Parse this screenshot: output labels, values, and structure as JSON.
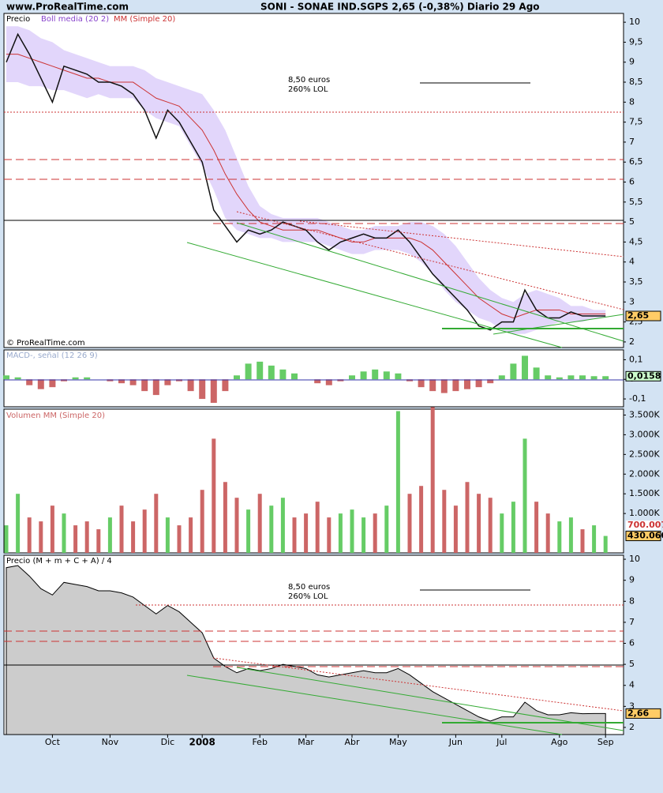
{
  "header": {
    "site": "www.ProRealTime.com",
    "title": "SONI - SONAE IND.SGPS   2,65 (-0,38%)   Diario  29 Ago"
  },
  "chart_data": [
    {
      "type": "line",
      "title": "Precio",
      "copyright": "© ProRealTime.com",
      "annotations": [
        "8,50 euros",
        "260% LOL"
      ],
      "ylim": [
        1.86,
        10.22
      ],
      "yticks": [
        10,
        {
          "value": 9.5,
          "label": "9,5"
        },
        9,
        {
          "value": 8.5,
          "label": "8,5"
        },
        8,
        {
          "value": 7.5,
          "label": "7,5"
        },
        7,
        {
          "value": 6.5,
          "label": "6,5"
        },
        6,
        {
          "value": 5.5,
          "label": "5,5"
        },
        5,
        {
          "value": 4.5,
          "label": "4,5"
        },
        4,
        {
          "value": 3.5,
          "label": "3,5"
        },
        3,
        {
          "value": 2.5,
          "label": "2,5"
        },
        2
      ],
      "last_label": {
        "value": 2.65,
        "label": "2,65"
      },
      "series": [
        {
          "name": "Precio",
          "color": "#111111",
          "values": [
            9.0,
            9.7,
            9.2,
            8.6,
            8.0,
            8.9,
            8.8,
            8.7,
            8.5,
            8.5,
            8.4,
            8.2,
            7.8,
            7.1,
            7.8,
            7.5,
            7.0,
            6.5,
            5.3,
            4.9,
            4.5,
            4.8,
            4.7,
            4.8,
            5.0,
            4.9,
            4.8,
            4.5,
            4.3,
            4.5,
            4.6,
            4.7,
            4.6,
            4.6,
            4.8,
            4.5,
            4.1,
            3.7,
            3.4,
            3.1,
            2.8,
            2.4,
            2.3,
            2.5,
            2.5,
            3.3,
            2.8,
            2.6,
            2.6,
            2.75,
            2.65,
            2.65,
            2.65
          ]
        },
        {
          "name": "Boll media (20 2)",
          "color": "#e2d6fb",
          "upper": [
            9.9,
            9.9,
            9.8,
            9.6,
            9.5,
            9.3,
            9.2,
            9.1,
            9.0,
            8.9,
            8.9,
            8.9,
            8.8,
            8.6,
            8.5,
            8.4,
            8.3,
            8.2,
            7.8,
            7.3,
            6.6,
            5.9,
            5.4,
            5.2,
            5.1,
            5.1,
            5.1,
            5.1,
            5.0,
            4.9,
            4.8,
            4.8,
            4.9,
            4.9,
            4.9,
            5.0,
            5.0,
            4.9,
            4.7,
            4.4,
            4.0,
            3.6,
            3.3,
            3.1,
            3.0,
            3.2,
            3.3,
            3.2,
            3.1,
            2.9,
            2.9,
            2.8,
            2.8
          ],
          "lower": [
            8.5,
            8.5,
            8.4,
            8.4,
            8.3,
            8.3,
            8.2,
            8.1,
            8.2,
            8.1,
            8.1,
            8.1,
            7.8,
            7.6,
            7.5,
            7.4,
            6.9,
            6.4,
            5.8,
            5.1,
            4.8,
            4.7,
            4.6,
            4.6,
            4.5,
            4.5,
            4.5,
            4.5,
            4.4,
            4.3,
            4.2,
            4.2,
            4.3,
            4.3,
            4.3,
            4.2,
            4.0,
            3.7,
            3.3,
            3.0,
            2.8,
            2.6,
            2.5,
            2.3,
            2.2,
            2.2,
            2.3,
            2.4,
            2.5,
            2.5,
            2.5,
            2.6,
            2.6
          ]
        },
        {
          "name": "MM (Simple 20)",
          "color": "#cc3333",
          "values": [
            9.2,
            9.2,
            9.1,
            9.0,
            8.9,
            8.8,
            8.7,
            8.6,
            8.6,
            8.5,
            8.5,
            8.5,
            8.3,
            8.1,
            8.0,
            7.9,
            7.6,
            7.3,
            6.8,
            6.2,
            5.7,
            5.3,
            5.0,
            4.9,
            4.8,
            4.8,
            4.8,
            4.8,
            4.7,
            4.6,
            4.5,
            4.5,
            4.6,
            4.6,
            4.6,
            4.6,
            4.5,
            4.3,
            4.0,
            3.7,
            3.4,
            3.1,
            2.9,
            2.7,
            2.6,
            2.7,
            2.8,
            2.8,
            2.8,
            2.7,
            2.7,
            2.7,
            2.7
          ]
        }
      ]
    },
    {
      "type": "bar",
      "title": "MACD-, señal (12 26 9)",
      "ylim": [
        -0.14,
        0.15
      ],
      "yticks": [
        {
          "value": 0.1,
          "label": "0,1"
        },
        0,
        {
          "value": -0.1,
          "label": "-0,1"
        }
      ],
      "last_label": {
        "value": 0.0158,
        "label": "0,0158"
      },
      "colors": {
        "up": "#66cc66",
        "down": "#cc6666"
      },
      "values": [
        0.02,
        0.01,
        -0.03,
        -0.05,
        -0.04,
        -0.01,
        0.01,
        0.01,
        0.0,
        -0.01,
        -0.02,
        -0.03,
        -0.06,
        -0.08,
        -0.03,
        -0.01,
        -0.06,
        -0.1,
        -0.12,
        -0.06,
        0.02,
        0.08,
        0.09,
        0.07,
        0.05,
        0.03,
        0.0,
        -0.02,
        -0.03,
        -0.01,
        0.02,
        0.04,
        0.05,
        0.04,
        0.03,
        -0.01,
        -0.04,
        -0.06,
        -0.07,
        -0.06,
        -0.05,
        -0.04,
        -0.02,
        0.02,
        0.08,
        0.12,
        0.06,
        0.02,
        0.01,
        0.02,
        0.02,
        0.016,
        0.016
      ]
    },
    {
      "type": "bar",
      "title": "Volumen MM (Simple 20)",
      "ylim": [
        0,
        3650000
      ],
      "yticks": [
        {
          "value": 1000000,
          "label": "1.000K"
        },
        {
          "value": 1500000,
          "label": "1.500K"
        },
        {
          "value": 2000000,
          "label": "2.000K"
        },
        {
          "value": 2500000,
          "label": "2.500K"
        },
        {
          "value": 3000000,
          "label": "3.000K"
        },
        {
          "value": 3500000,
          "label": "3.500K"
        }
      ],
      "ma_label": {
        "value": 700007,
        "label": "700.007"
      },
      "last_label": {
        "value": 430060,
        "label": "430.060"
      },
      "colors": {
        "up": "#66cc66",
        "down": "#cc6666"
      },
      "values": [
        700000,
        1500000,
        900000,
        800000,
        1200000,
        1000000,
        700000,
        800000,
        600000,
        900000,
        1200000,
        800000,
        1100000,
        1500000,
        900000,
        700000,
        900000,
        1600000,
        2900000,
        1800000,
        1400000,
        1100000,
        1500000,
        1200000,
        1400000,
        900000,
        1000000,
        1300000,
        900000,
        1000000,
        1100000,
        900000,
        1000000,
        1200000,
        3600000,
        1500000,
        1700000,
        3700000,
        1600000,
        1200000,
        1800000,
        1500000,
        1400000,
        1000000,
        1300000,
        2900000,
        1300000,
        1000000,
        800000,
        900000,
        600000,
        700000,
        430060
      ]
    },
    {
      "type": "area",
      "title": "Precio (M + m + C + A) / 4",
      "annotations": [
        "8,50 euros",
        "260% LOL"
      ],
      "ylim": [
        1.66,
        10.19
      ],
      "yticks": [
        10,
        9,
        8,
        7,
        6,
        5,
        4,
        3,
        2
      ],
      "last_label": {
        "value": 2.66,
        "label": "2,66"
      },
      "color": "#cccccc",
      "categories": [
        null,
        null,
        null,
        null,
        "Oct",
        null,
        null,
        null,
        null,
        "Nov",
        null,
        null,
        null,
        null,
        "Dic",
        null,
        null,
        "2008",
        null,
        null,
        null,
        null,
        "Feb",
        null,
        null,
        null,
        "Mar",
        null,
        null,
        null,
        "Abr",
        null,
        null,
        null,
        "May",
        null,
        null,
        null,
        null,
        "Jun",
        null,
        null,
        null,
        "Jul",
        null,
        null,
        null,
        null,
        "Ago",
        null,
        null,
        null,
        "Sep"
      ],
      "values": [
        9.6,
        9.7,
        9.2,
        8.6,
        8.3,
        8.9,
        8.8,
        8.7,
        8.5,
        8.5,
        8.4,
        8.2,
        7.8,
        7.4,
        7.8,
        7.5,
        7.0,
        6.5,
        5.3,
        4.9,
        4.6,
        4.8,
        4.7,
        4.8,
        5.0,
        4.9,
        4.8,
        4.5,
        4.4,
        4.5,
        4.6,
        4.7,
        4.6,
        4.6,
        4.8,
        4.5,
        4.1,
        3.7,
        3.4,
        3.1,
        2.8,
        2.5,
        2.3,
        2.5,
        2.5,
        3.2,
        2.8,
        2.6,
        2.6,
        2.7,
        2.65,
        2.66,
        2.66
      ]
    }
  ]
}
